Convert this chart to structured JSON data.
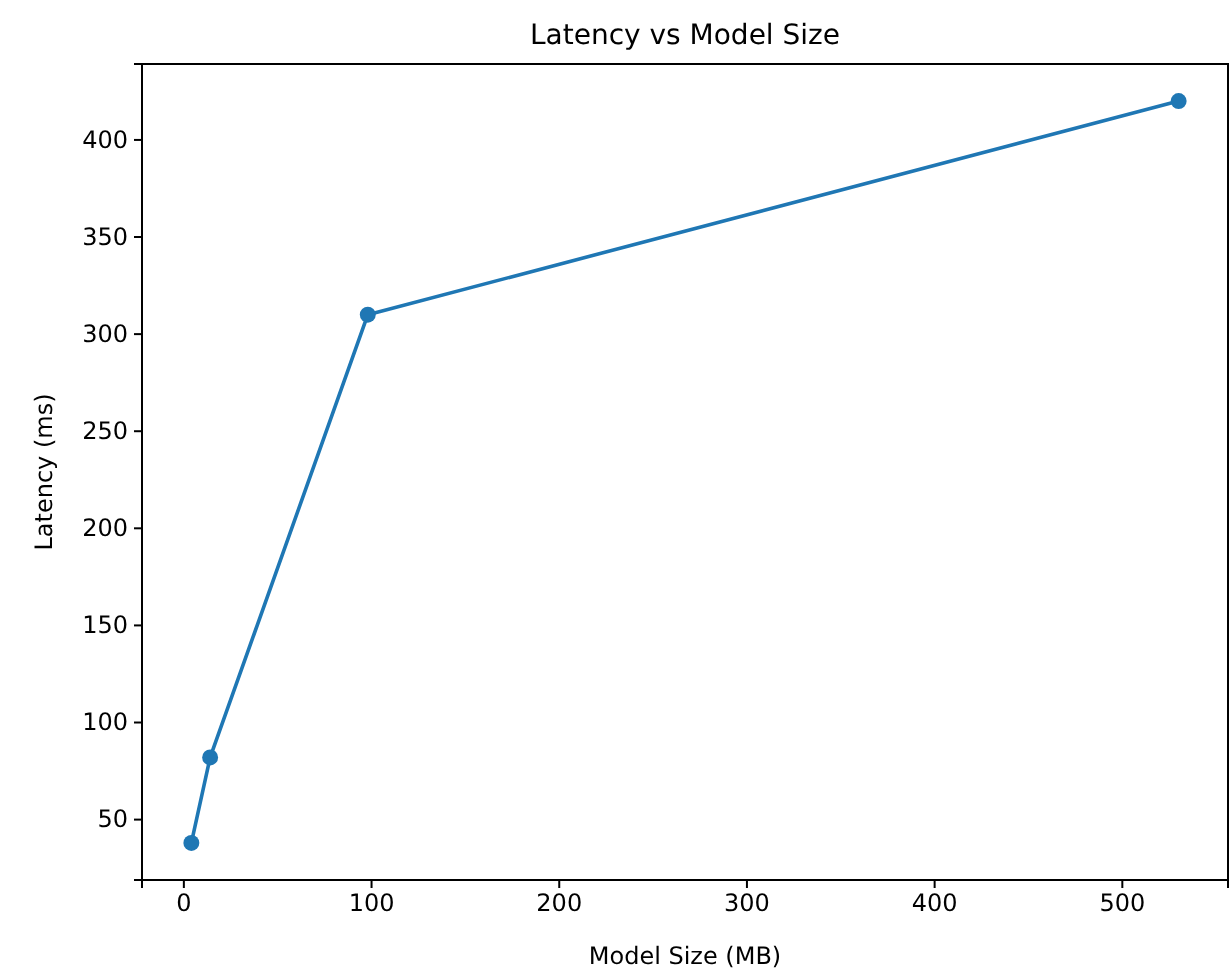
{
  "chart_data": {
    "type": "line",
    "title": "Latency vs Model Size",
    "xlabel": "Model Size (MB)",
    "ylabel": "Latency (ms)",
    "x": [
      4,
      14,
      98,
      530
    ],
    "series": [
      {
        "color": "#1f77b4",
        "values": [
          38,
          82,
          310,
          420
        ]
      }
    ],
    "xlim": [
      -22.3,
      556.3
    ],
    "xticks": [
      0,
      100,
      200,
      300,
      400,
      500
    ],
    "ylim": [
      18.9,
      439.1
    ],
    "yticks": [
      50,
      100,
      150,
      200,
      250,
      300,
      350,
      400
    ],
    "marker": "circle",
    "line_style": "solid"
  }
}
